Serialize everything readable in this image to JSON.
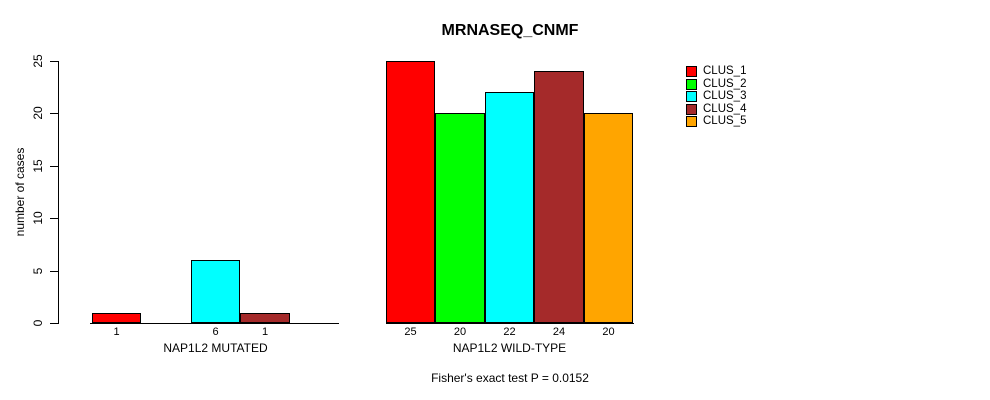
{
  "chart_data": {
    "type": "bar",
    "title": "MRNASEQ_CNMF",
    "ylabel": "number of cases",
    "xlabel": "",
    "ylim": [
      0,
      25
    ],
    "yticks": [
      "0",
      "5",
      "10",
      "15",
      "20",
      "25"
    ],
    "ytick_values": [
      0,
      5,
      10,
      15,
      20,
      25
    ],
    "grid": false,
    "legend_position": "right",
    "categories": [
      "NAP1L2 MUTATED",
      "NAP1L2 WILD-TYPE"
    ],
    "series": [
      {
        "name": "CLUS_1",
        "color": "#FF0000",
        "values": [
          1,
          25
        ]
      },
      {
        "name": "CLUS_2",
        "color": "#00FF00",
        "values": [
          0,
          20
        ]
      },
      {
        "name": "CLUS_3",
        "color": "#00FFFF",
        "values": [
          6,
          22
        ]
      },
      {
        "name": "CLUS_4",
        "color": "#A52A2A",
        "values": [
          1,
          24
        ]
      },
      {
        "name": "CLUS_5",
        "color": "#FFA500",
        "values": [
          0,
          20
        ]
      }
    ],
    "bar_value_labels": [
      [
        "1",
        "",
        "6",
        "1",
        ""
      ],
      [
        "25",
        "20",
        "22",
        "24",
        "20"
      ]
    ],
    "annotation": "Fisher's exact test P = 0.0152"
  }
}
